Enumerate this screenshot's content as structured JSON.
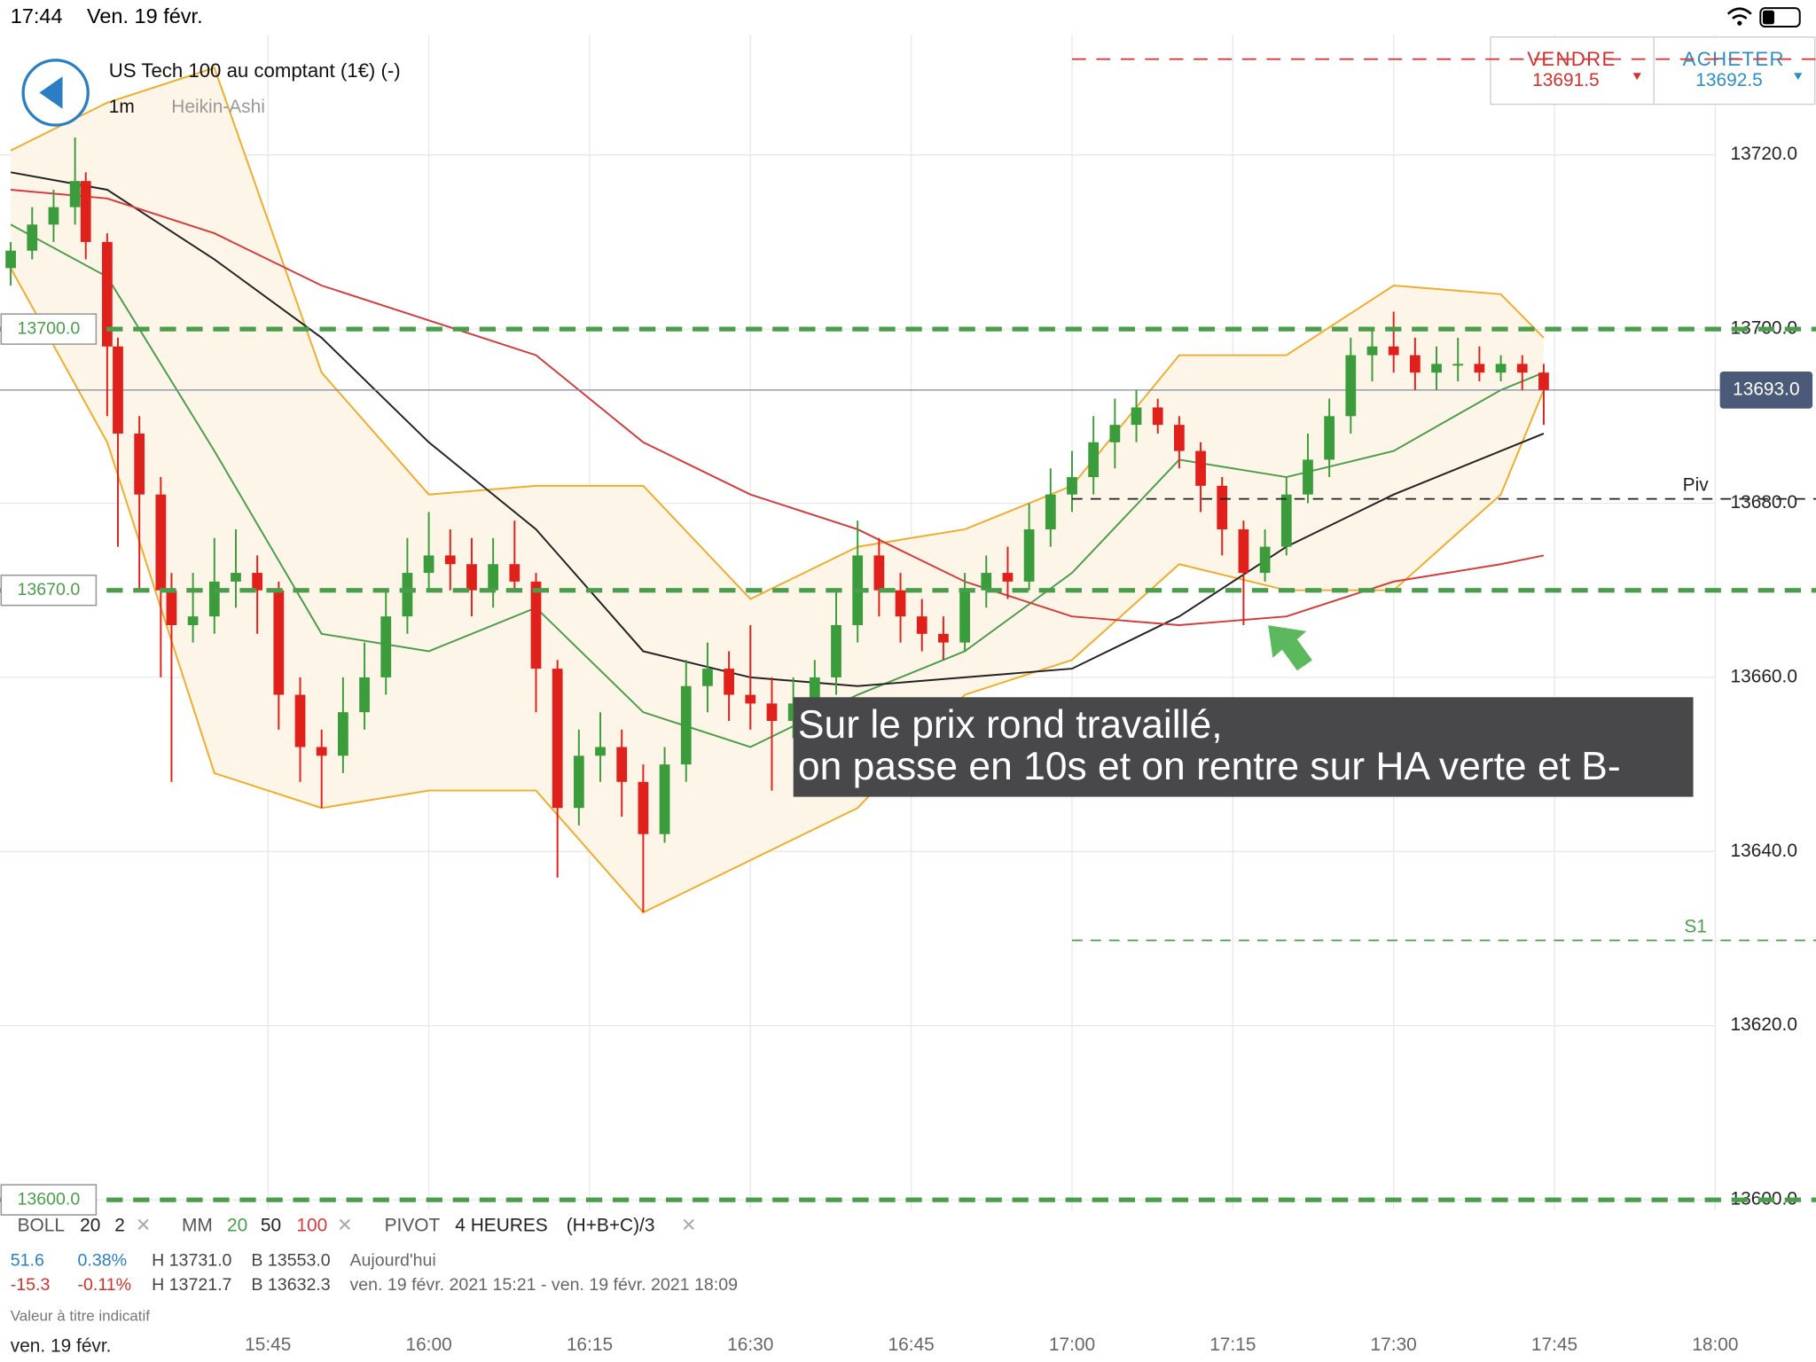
{
  "status_bar": {
    "time": "17:44",
    "date": "Ven. 19 févr."
  },
  "header": {
    "instrument": "US Tech 100 au comptant (1€) (-)",
    "interval": "1m",
    "chart_style": "Heikin-Ashi"
  },
  "trade_buttons": {
    "sell": {
      "label": "VENDRE",
      "price": "13691.5"
    },
    "buy": {
      "label": "ACHETER",
      "price": "13692.5"
    }
  },
  "annotation": {
    "lines": [
      "Sur le prix rond travaillé,",
      "on passe en 10s et on rentre sur HA verte et B-"
    ]
  },
  "legend": {
    "row1": {
      "boll": "BOLL",
      "boll_period": "20",
      "boll_dev": "2",
      "mm": "MM",
      "mm_fast": "20",
      "mm_mid": "50",
      "mm_slow": "100",
      "pivot": "PIVOT",
      "pivot_period": "4 HEURES",
      "pivot_formula": "(H+B+C)/3"
    },
    "row2": {
      "change": "51.6",
      "change_pct": "0.38%",
      "high": "H 13731.0",
      "low": "B 13553.0",
      "period": "Aujourd'hui"
    },
    "row3": {
      "change": "-15.3",
      "change_pct": "-0.11%",
      "high": "H 13721.7",
      "low": "B 13632.3",
      "period": "ven. 19 févr. 2021 15:21 - ven. 19 févr. 2021 18:09"
    },
    "note": "Valeur à titre indicatif",
    "date": "ven. 19 févr."
  },
  "chart_data": {
    "type": "candlestick",
    "up_color": "#3a9c3a",
    "down_color": "#e0201b",
    "x": [
      "15:21",
      "15:23",
      "15:25",
      "15:27",
      "15:28",
      "15:30",
      "15:31",
      "15:33",
      "15:35",
      "15:36",
      "15:38",
      "15:40",
      "15:42",
      "15:44",
      "15:46",
      "15:48",
      "15:50",
      "15:52",
      "15:54",
      "15:56",
      "15:58",
      "16:00",
      "16:02",
      "16:04",
      "16:06",
      "16:08",
      "16:10",
      "16:12",
      "16:14",
      "16:16",
      "16:18",
      "16:20",
      "16:22",
      "16:24",
      "16:26",
      "16:28",
      "16:30",
      "16:32",
      "16:34",
      "16:36",
      "16:38",
      "16:40",
      "16:42",
      "16:44",
      "16:46",
      "16:48",
      "16:50",
      "16:52",
      "16:54",
      "16:56",
      "16:58",
      "17:00",
      "17:02",
      "17:04",
      "17:06",
      "17:08",
      "17:10",
      "17:12",
      "17:14",
      "17:16",
      "17:18",
      "17:20",
      "17:22",
      "17:24",
      "17:26",
      "17:28",
      "17:30",
      "17:32",
      "17:34",
      "17:36",
      "17:38",
      "17:40",
      "17:42",
      "17:44"
    ],
    "open": [
      13707,
      13709,
      13712,
      13714,
      13717,
      13710,
      13698,
      13688,
      13681,
      13670,
      13666,
      13667,
      13671,
      13672,
      13670,
      13658,
      13652,
      13651,
      13656,
      13660,
      13667,
      13672,
      13674,
      13673,
      13670,
      13673,
      13671,
      13661,
      13645,
      13651,
      13652,
      13648,
      13642,
      13650,
      13659,
      13661,
      13658,
      13657,
      13655,
      13657,
      13660,
      13666,
      13674,
      13670,
      13667,
      13665,
      13664,
      13670,
      13672,
      13671,
      13677,
      13681,
      13683,
      13687,
      13689,
      13691,
      13689,
      13686,
      13682,
      13677,
      13672,
      13675,
      13681,
      13685,
      13690,
      13697,
      13698,
      13697,
      13695,
      13696,
      13696,
      13695,
      13696,
      13695
    ],
    "high": [
      13710,
      13714,
      13716,
      13722,
      13718,
      13711,
      13699,
      13690,
      13683,
      13672,
      13672,
      13676,
      13677,
      13674,
      13671,
      13660,
      13654,
      13660,
      13664,
      13670,
      13676,
      13679,
      13677,
      13676,
      13676,
      13678,
      13672,
      13662,
      13654,
      13656,
      13654,
      13650,
      13652,
      13662,
      13664,
      13663,
      13666,
      13660,
      13660,
      13662,
      13670,
      13678,
      13676,
      13672,
      13669,
      13667,
      13672,
      13674,
      13675,
      13680,
      13684,
      13686,
      13690,
      13692,
      13693,
      13692,
      13690,
      13687,
      13683,
      13678,
      13677,
      13683,
      13688,
      13692,
      13699,
      13700,
      13702,
      13699,
      13698,
      13699,
      13698,
      13697,
      13697,
      13696
    ],
    "low": [
      13705,
      13708,
      13710,
      13712,
      13708,
      13690,
      13675,
      13670,
      13660,
      13648,
      13664,
      13665,
      13668,
      13665,
      13654,
      13648,
      13645,
      13649,
      13654,
      13658,
      13665,
      13670,
      13670,
      13667,
      13668,
      13670,
      13656,
      13637,
      13643,
      13648,
      13644,
      13633,
      13641,
      13648,
      13656,
      13655,
      13654,
      13647,
      13653,
      13655,
      13658,
      13664,
      13667,
      13664,
      13663,
      13662,
      13663,
      13668,
      13669,
      13670,
      13675,
      13679,
      13681,
      13684,
      13687,
      13688,
      13684,
      13679,
      13674,
      13666,
      13671,
      13674,
      13680,
      13683,
      13688,
      13694,
      13695,
      13693,
      13693,
      13694,
      13694,
      13694,
      13693,
      13689
    ],
    "close": [
      13709,
      13712,
      13714,
      13717,
      13710,
      13698,
      13688,
      13681,
      13670,
      13666,
      13667,
      13671,
      13672,
      13670,
      13658,
      13652,
      13651,
      13656,
      13660,
      13667,
      13672,
      13674,
      13673,
      13670,
      13673,
      13671,
      13661,
      13645,
      13651,
      13652,
      13648,
      13642,
      13650,
      13659,
      13661,
      13658,
      13657,
      13655,
      13657,
      13660,
      13666,
      13674,
      13670,
      13667,
      13665,
      13664,
      13670,
      13672,
      13671,
      13677,
      13681,
      13683,
      13687,
      13689,
      13691,
      13689,
      13686,
      13682,
      13677,
      13672,
      13675,
      13681,
      13685,
      13690,
      13697,
      13698,
      13697,
      13695,
      13696,
      13696,
      13695,
      13696,
      13695,
      13693
    ],
    "indicators": {
      "x": [
        "15:21",
        "15:30",
        "15:40",
        "15:50",
        "16:00",
        "16:10",
        "16:20",
        "16:30",
        "16:40",
        "16:50",
        "17:00",
        "17:10",
        "17:20",
        "17:30",
        "17:40",
        "17:44"
      ],
      "series": [
        {
          "color": "#f0ac2a",
          "values": [
            13720.5,
            13726,
            13730,
            13695,
            13681,
            13682,
            13682,
            13669,
            13675,
            13677,
            13682,
            13697,
            13697,
            13705,
            13704,
            13699
          ]
        },
        {
          "color": "#f0ac2a",
          "values": [
            13707,
            13687,
            13649,
            13645,
            13647,
            13647,
            13633,
            13639,
            13645,
            13658,
            13662,
            13673,
            13670,
            13670,
            13681,
            13693
          ]
        },
        {
          "color": "#4a9d4a",
          "values": [
            13712,
            13706,
            13686,
            13665,
            13663,
            13668,
            13656,
            13652,
            13658,
            13663,
            13672,
            13685,
            13683,
            13686,
            13693,
            13695
          ]
        },
        {
          "color": "#222222",
          "values": [
            13718,
            13716,
            13708,
            13699,
            13687,
            13677,
            13663,
            13660,
            13659,
            13660,
            13661,
            13667,
            13675,
            13681,
            13686,
            13688
          ]
        },
        {
          "color": "#d63a3a",
          "values": [
            13716,
            13715,
            13711,
            13705,
            13701,
            13697,
            13687,
            13681,
            13677,
            13671,
            13667,
            13666,
            13667,
            13671,
            13673,
            13674
          ]
        }
      ],
      "band_fill": "#fdf5e8"
    },
    "levels": [
      {
        "value": 13700,
        "label": "13700.0",
        "label_side": "left",
        "color": "#4a9d4a",
        "dash": "14 9",
        "width": 4,
        "start": "15:20"
      },
      {
        "value": 13670,
        "label": "13670.0",
        "label_side": "left",
        "color": "#4a9d4a",
        "dash": "14 9",
        "width": 4,
        "start": "15:20"
      },
      {
        "value": 13600,
        "label": "13600.0",
        "label_side": "left",
        "color": "#4a9d4a",
        "dash": "14 9",
        "width": 4,
        "start": "15:20"
      },
      {
        "value": 13680.5,
        "label": "Piv",
        "label_side": "right",
        "color": "#222222",
        "dash": "9 7",
        "width": 1.3,
        "start": "17:00"
      },
      {
        "value": 13629.8,
        "label": "S1",
        "label_side": "right",
        "color": "#4a9d4a",
        "dash": "9 7",
        "width": 1.3,
        "start": "17:00"
      },
      {
        "value": 13731,
        "color": "#d63a3a",
        "dash": "12 9",
        "width": 1.5,
        "start": "17:00"
      }
    ],
    "current_price": {
      "value": 13693,
      "label": "13693.0",
      "color": "#4b5a78"
    },
    "xlim": [
      "15:20",
      "18:00"
    ],
    "ylim": [
      13598.8,
      13733.8
    ],
    "xticks": [
      "15:45",
      "16:00",
      "16:15",
      "16:30",
      "16:45",
      "17:00",
      "17:15",
      "17:30",
      "17:45",
      "18:00"
    ],
    "yticks": [
      {
        "value": 13720,
        "label": "13720.0"
      },
      {
        "value": 13700,
        "label": "13700.0"
      },
      {
        "value": 13680,
        "label": "13680.0"
      },
      {
        "value": 13660,
        "label": "13660.0"
      },
      {
        "value": 13640,
        "label": "13640.0"
      },
      {
        "value": 13620,
        "label": "13620.0"
      },
      {
        "value": 13600,
        "label": "13600.0"
      }
    ],
    "grid": true
  }
}
